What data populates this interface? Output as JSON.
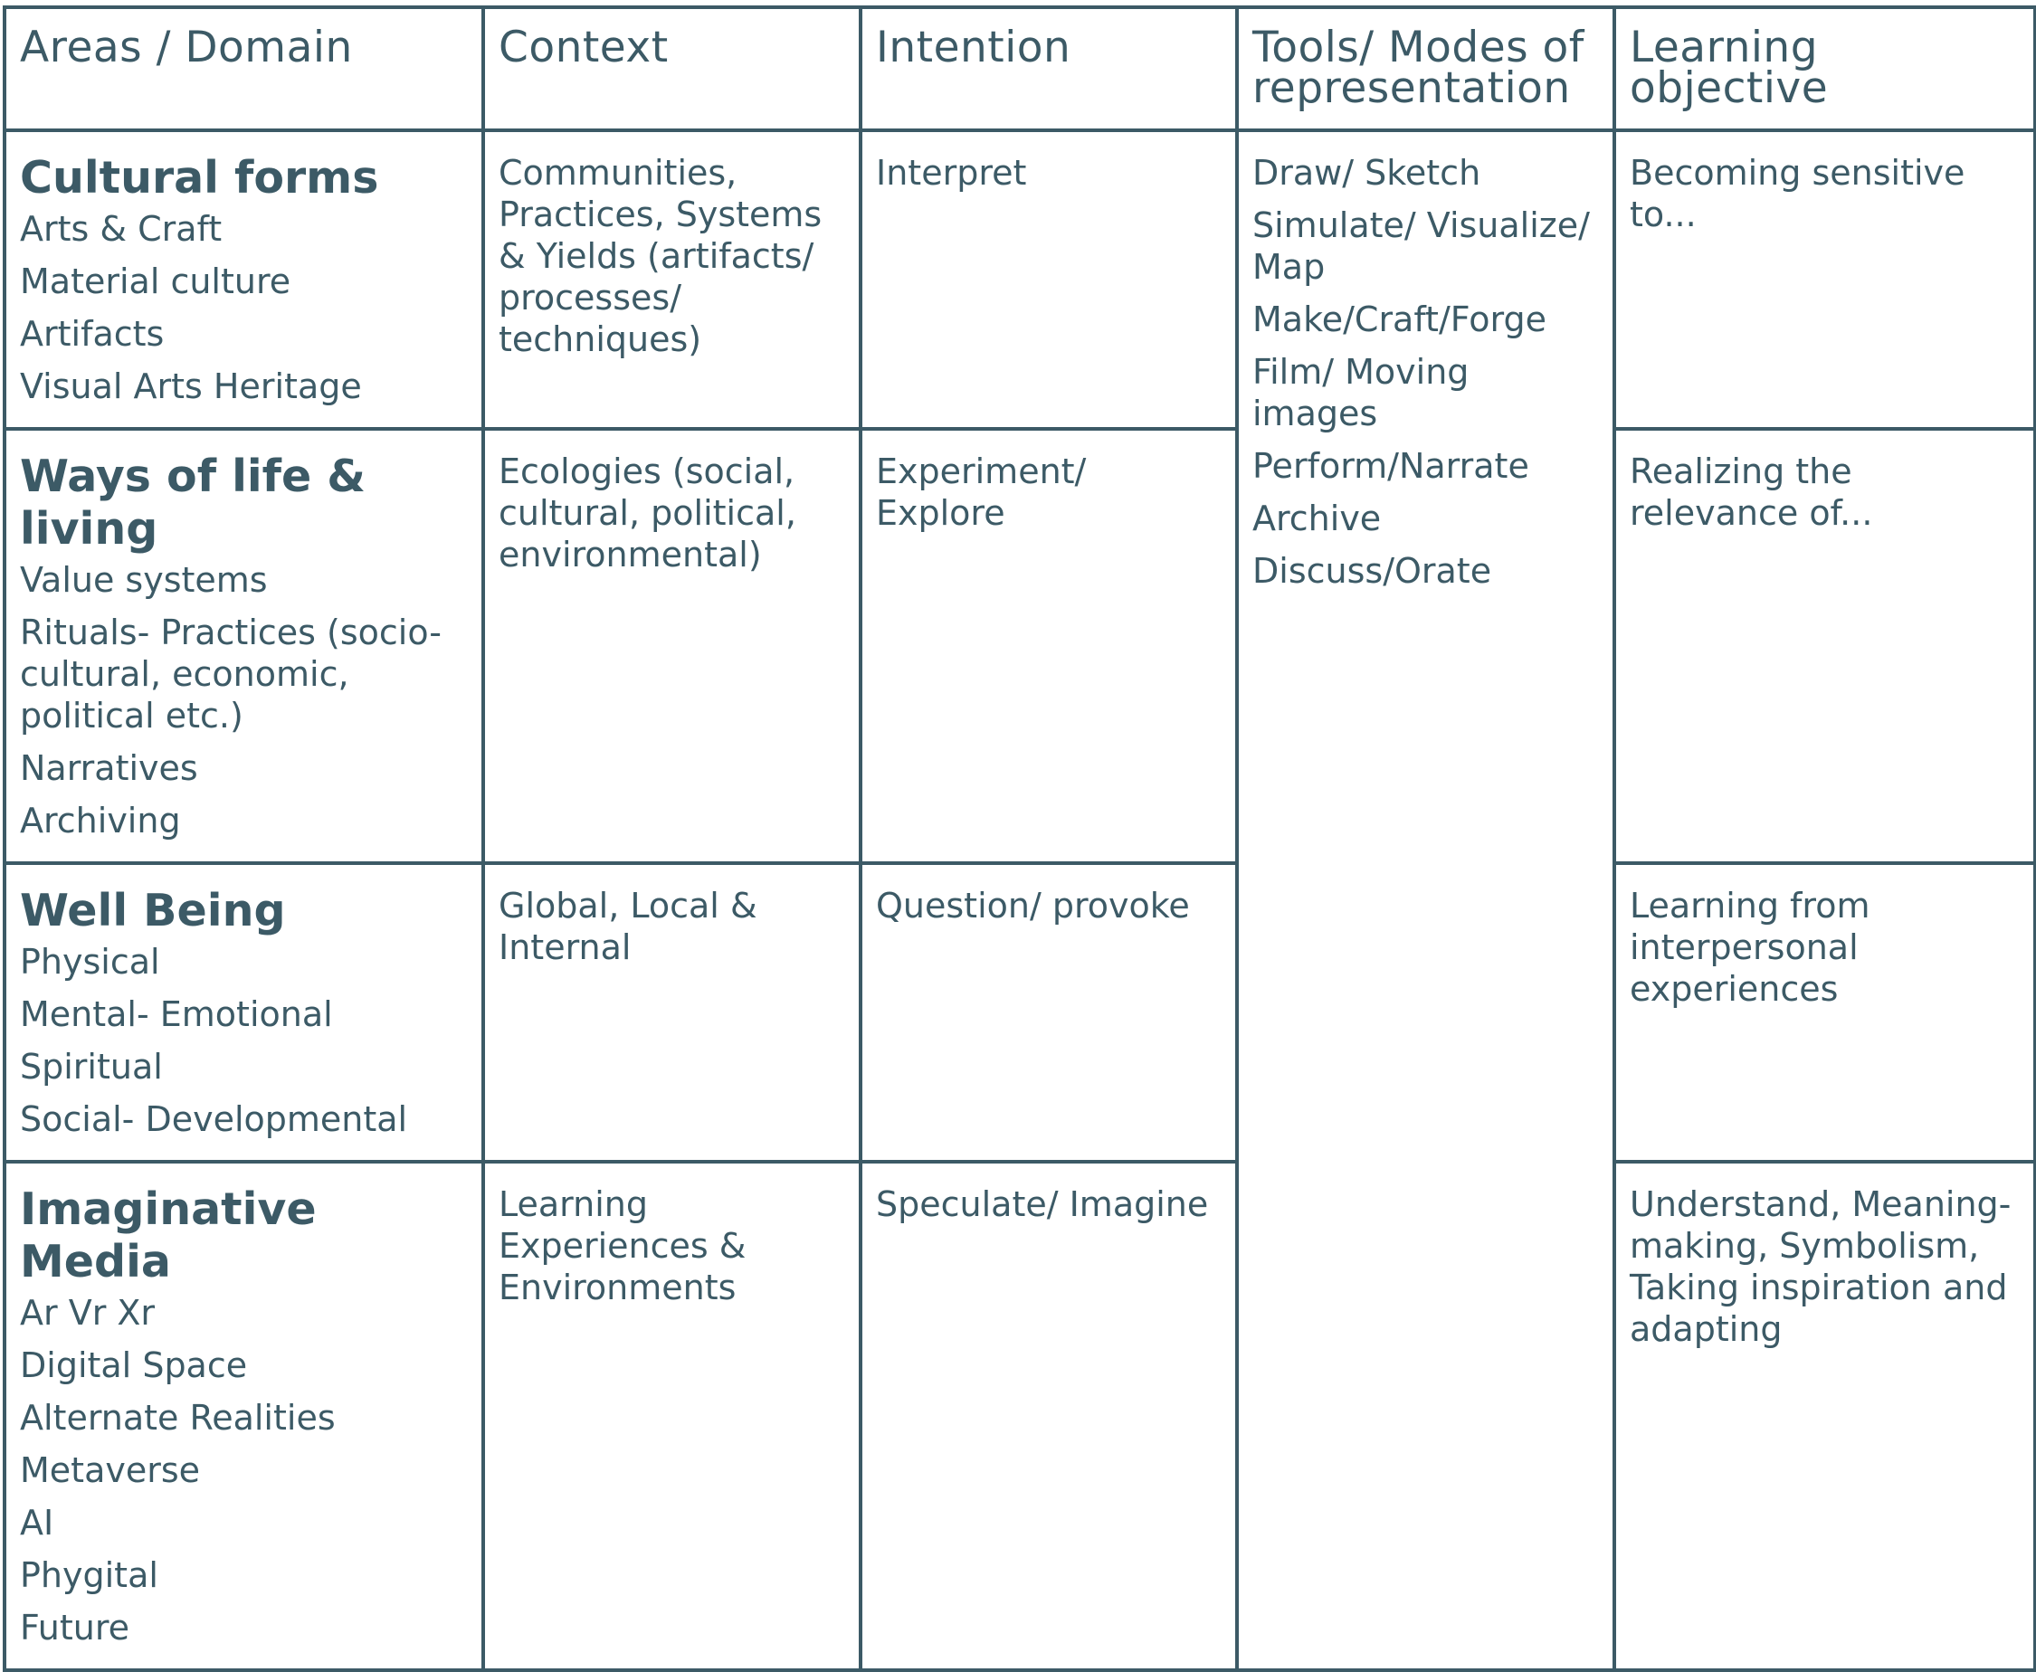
{
  "headers": [
    "Areas / Domain",
    "Context",
    "Intention",
    "Tools/ Modes of representation",
    "Learning objective"
  ],
  "rows": [
    {
      "domain": {
        "title": "Cultural forms",
        "items": [
          "Arts & Craft",
          "Material culture",
          "Artifacts",
          "Visual Arts Heritage"
        ]
      },
      "context": "Communities, Practices, Systems & Yields (artifacts/ processes/ techniques)",
      "intention": "Interpret",
      "objective": "Becoming sensitive to..."
    },
    {
      "domain": {
        "title": "Ways of life & living",
        "items": [
          "Value systems",
          "Rituals- Practices (socio-cultural, economic, political etc.)",
          "Narratives",
          "Archiving"
        ]
      },
      "context": "Ecologies (social, cultural, political, environmental)",
      "intention": "Experiment/ Explore",
      "objective": "Realizing the relevance of..."
    },
    {
      "domain": {
        "title": "Well Being",
        "items": [
          "Physical",
          "Mental- Emotional",
          "Spiritual",
          "Social- Developmental"
        ]
      },
      "context": "Global, Local & Internal",
      "intention": "Question/ provoke",
      "objective": "Learning from interpersonal experiences"
    },
    {
      "domain": {
        "title": "Imaginative Media",
        "items": [
          "Ar Vr Xr",
          "Digital Space",
          "Alternate Realities",
          "Metaverse",
          "AI",
          "Phygital",
          "Future"
        ]
      },
      "context": "Learning Experiences & Environments",
      "intention": "Speculate/  Imagine",
      "objective": "Understand, Meaning-making, Symbolism, Taking inspiration and adapting"
    }
  ],
  "tools": [
    "Draw/ Sketch",
    "Simulate/ Visualize/ Map",
    "Make/Craft/Forge",
    "Film/ Moving images",
    "Perform/Narrate",
    "Archive",
    "Discuss/Orate"
  ],
  "colors": {
    "text": "#3c5a66",
    "border": "#3c5a66",
    "background": "#ffffff"
  }
}
